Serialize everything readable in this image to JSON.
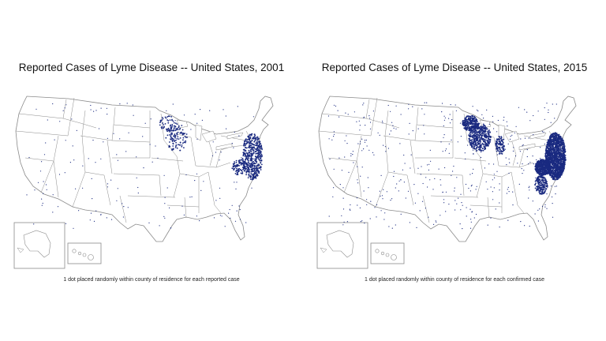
{
  "colors": {
    "dot": "#1a2a80",
    "border": "#8a8a8a",
    "background": "#ffffff"
  },
  "maps": [
    {
      "title": "Reported Cases of Lyme Disease -- United States, 2001",
      "caption": "1 dot placed randomly within county of residence for each reported case",
      "year": 2001
    },
    {
      "title": "Reported Cases of Lyme Disease -- United States, 2015",
      "caption": "1 dot placed randomly within county of residence for each confirmed case",
      "year": 2015
    }
  ]
}
